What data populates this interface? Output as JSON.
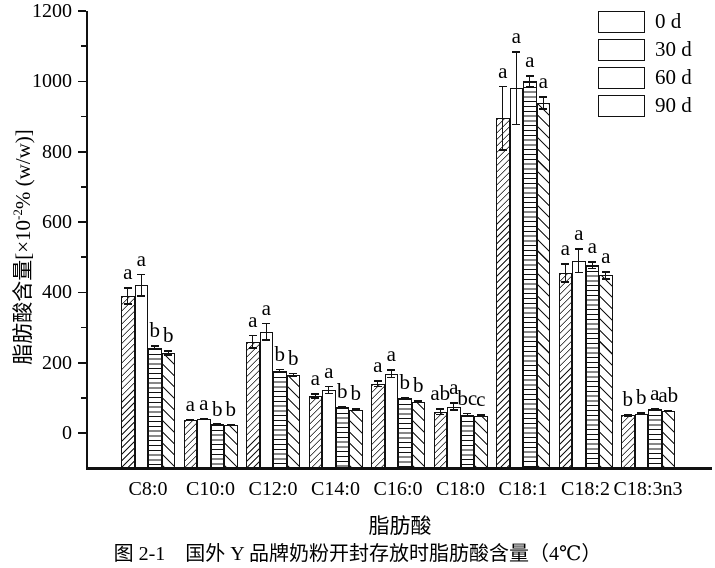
{
  "figure": {
    "caption": "图 2-1　国外 Y 品牌奶粉开封存放时脂肪酸含量（4℃）"
  },
  "ylabel_parts": {
    "prefix": "脂肪酸含量[×10",
    "sup": "-2",
    "suffix": "% (w/w)]"
  },
  "chart_data": {
    "type": "bar",
    "title": "",
    "xlabel": "脂肪酸",
    "ylabel": "脂肪酸含量[×10⁻²% (w/w)]",
    "ylim": [
      0,
      1200
    ],
    "yticks": [
      0,
      200,
      400,
      600,
      800,
      1000,
      1200
    ],
    "y_minor_step": 100,
    "grid": false,
    "legend_position": "top-right",
    "categories": [
      "C8:0",
      "C10:0",
      "C12:0",
      "C14:0",
      "C16:0",
      "C18:0",
      "C18:1",
      "C18:2",
      "C18:3n3"
    ],
    "series": [
      {
        "name": "0 d",
        "pattern": "diagonal-forward",
        "values": [
          390,
          36,
          260,
          105,
          140,
          61,
          895,
          455,
          50
        ],
        "errors": [
          25,
          3,
          20,
          8,
          10,
          10,
          93,
          28,
          4
        ],
        "letters": [
          "a",
          "a",
          "a",
          "a",
          "a",
          "ab",
          "a",
          "a",
          "b"
        ]
      },
      {
        "name": "30 d",
        "pattern": "solid-white",
        "values": [
          420,
          39,
          288,
          122,
          168,
          75,
          980,
          490,
          55
        ],
        "errors": [
          33,
          3,
          25,
          12,
          13,
          12,
          105,
          36,
          4
        ],
        "letters": [
          "a",
          "a",
          "a",
          "a",
          "a",
          "a",
          "a",
          "a",
          "b"
        ]
      },
      {
        "name": "60 d",
        "pattern": "horizontal-lines",
        "values": [
          243,
          25,
          177,
          73,
          99,
          52,
          1000,
          477,
          67
        ],
        "errors": [
          6,
          2,
          6,
          4,
          4,
          5,
          17,
          12,
          3
        ],
        "letters": [
          "b",
          "b",
          "b",
          "b",
          "b",
          "bc",
          "a",
          "a",
          "a"
        ]
      },
      {
        "name": "90 d",
        "pattern": "diagonal-back",
        "values": [
          228,
          24,
          165,
          66,
          89,
          49,
          938,
          448,
          62
        ],
        "errors": [
          8,
          2,
          6,
          4,
          4,
          4,
          19,
          12,
          3
        ],
        "letters": [
          "b",
          "b",
          "b",
          "b",
          "b",
          "c",
          "a",
          "a",
          "ab"
        ]
      }
    ]
  }
}
